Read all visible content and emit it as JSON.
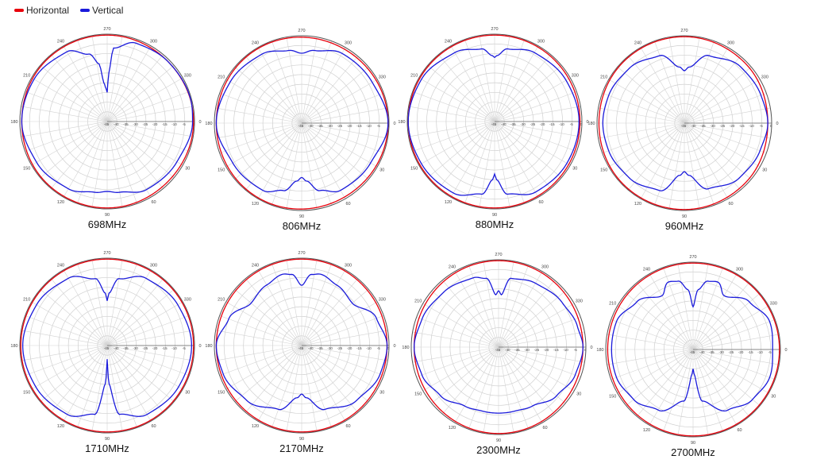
{
  "legend": {
    "horizontal_label": "Horizontal",
    "vertical_label": "Vertical",
    "horizontal_color": "#e8000b",
    "vertical_color": "#1a1adb"
  },
  "axis": {
    "angle_labels": [
      "0",
      "30",
      "60",
      "90",
      "120",
      "150",
      "180",
      "210",
      "240",
      "270",
      "300",
      "330"
    ],
    "radial_labels": [
      "-45",
      "-40",
      "-35",
      "-30",
      "-25",
      "-20",
      "-15",
      "-10",
      "-5",
      "0"
    ],
    "radial_range_db": [
      -45,
      0
    ],
    "angle_zero_direction": "east",
    "angle_direction": "clockwise",
    "grid": true
  },
  "chart_data": [
    {
      "type": "polar",
      "title": "698MHz",
      "series": [
        {
          "name": "Horizontal",
          "theta": [
            0,
            45,
            90,
            135,
            180,
            225,
            270,
            315
          ],
          "r": [
            -0.5,
            -1,
            -0.5,
            -0.5,
            -1,
            -0.5,
            -0.5,
            -1
          ]
        },
        {
          "name": "Vertical",
          "theta": [
            0,
            30,
            60,
            80,
            90,
            100,
            120,
            150,
            180,
            210,
            240,
            255,
            262,
            265,
            268,
            270,
            272,
            275,
            290,
            315,
            345
          ],
          "r": [
            -1,
            -3.5,
            -4.5,
            -8,
            -9,
            -8,
            -5,
            -3,
            -1,
            -1.5,
            -3.5,
            -9,
            -15,
            -25,
            -28,
            -30,
            -20,
            -7,
            -2,
            -1,
            -0.5
          ]
        }
      ]
    },
    {
      "type": "polar",
      "title": "806MHz",
      "series": [
        {
          "name": "Horizontal",
          "theta": [
            0,
            60,
            120,
            180,
            240,
            300
          ],
          "r": [
            -0.5,
            -1,
            -0.5,
            -1,
            -0.5,
            -1
          ]
        },
        {
          "name": "Vertical",
          "theta": [
            0,
            30,
            60,
            75,
            85,
            90,
            95,
            105,
            120,
            150,
            180,
            210,
            240,
            260,
            270,
            280,
            300,
            330
          ],
          "r": [
            -0.5,
            -4,
            -5,
            -9,
            -15,
            -17,
            -15,
            -9,
            -5,
            -4,
            -1,
            -2.5,
            -4,
            -7,
            -9,
            -7,
            -3.5,
            -3
          ]
        }
      ]
    },
    {
      "type": "polar",
      "title": "880MHz",
      "series": [
        {
          "name": "Horizontal",
          "theta": [
            0,
            90,
            180,
            270
          ],
          "r": [
            -1,
            -0.5,
            -0.5,
            -0.5
          ]
        },
        {
          "name": "Vertical",
          "theta": [
            0,
            30,
            60,
            80,
            88,
            90,
            92,
            100,
            120,
            150,
            180,
            210,
            240,
            260,
            268,
            270,
            272,
            280,
            300,
            330
          ],
          "r": [
            -1.5,
            -2,
            -3,
            -7,
            -15,
            -18,
            -15,
            -7,
            -2.5,
            -1.5,
            -0.5,
            -1.5,
            -4,
            -7,
            -11,
            -12,
            -11,
            -7,
            -4,
            -2.5
          ]
        }
      ]
    },
    {
      "type": "polar",
      "title": "960MHz",
      "series": [
        {
          "name": "Horizontal",
          "theta": [
            0,
            45,
            90,
            135,
            180,
            225,
            270,
            315
          ],
          "r": [
            -2,
            -1,
            -0.5,
            -0.5,
            -1,
            -0.5,
            -0.5,
            -1
          ]
        },
        {
          "name": "Vertical",
          "theta": [
            0,
            20,
            45,
            70,
            85,
            90,
            95,
            110,
            135,
            160,
            180,
            200,
            225,
            250,
            265,
            270,
            275,
            290,
            315,
            340
          ],
          "r": [
            -2,
            -3.5,
            -5,
            -9,
            -18,
            -20,
            -18,
            -8,
            -5,
            -3.5,
            -3,
            -3.5,
            -5,
            -8,
            -16,
            -18,
            -16,
            -8,
            -4,
            -3
          ]
        }
      ]
    },
    {
      "type": "polar",
      "title": "1710MHz",
      "series": [
        {
          "name": "Horizontal",
          "theta": [
            0,
            90,
            180,
            270
          ],
          "r": [
            -0.5,
            -0.5,
            -0.5,
            -0.5
          ]
        },
        {
          "name": "Vertical",
          "theta": [
            0,
            30,
            60,
            80,
            87,
            90,
            93,
            100,
            120,
            150,
            180,
            210,
            240,
            260,
            268,
            270,
            272,
            280,
            300,
            330
          ],
          "r": [
            -1.5,
            -2.5,
            -4,
            -9,
            -25,
            -38,
            -25,
            -9,
            -4,
            -2.5,
            -1.5,
            -3,
            -5,
            -10,
            -18,
            -22,
            -18,
            -10,
            -5,
            -3
          ]
        }
      ]
    },
    {
      "type": "polar",
      "title": "2170MHz",
      "series": [
        {
          "name": "Horizontal",
          "theta": [
            0,
            90,
            180,
            270
          ],
          "r": [
            -1,
            -0.5,
            -1,
            -0.5
          ]
        },
        {
          "name": "Vertical",
          "theta": [
            0,
            20,
            45,
            70,
            85,
            90,
            95,
            110,
            135,
            160,
            180,
            200,
            220,
            240,
            255,
            262,
            270,
            278,
            285,
            300,
            320,
            340
          ],
          "r": [
            -1,
            -2,
            -5,
            -10,
            -18,
            -20,
            -18,
            -10,
            -5,
            -2,
            -1,
            -5,
            -11,
            -9,
            -7,
            -8,
            -14,
            -8,
            -7,
            -9,
            -11,
            -4
          ]
        }
      ]
    },
    {
      "type": "polar",
      "title": "2300MHz",
      "series": [
        {
          "name": "Horizontal",
          "theta": [
            0,
            90,
            180,
            270
          ],
          "r": [
            -1.5,
            -0.5,
            -1.5,
            -0.5
          ]
        },
        {
          "name": "Vertical",
          "theta": [
            0,
            20,
            40,
            60,
            75,
            90,
            105,
            120,
            140,
            160,
            180,
            200,
            225,
            250,
            260,
            267,
            270,
            273,
            280,
            300,
            325,
            345
          ],
          "r": [
            -1.5,
            -3,
            -6,
            -10,
            -11,
            -11,
            -11,
            -10,
            -6,
            -3,
            -1.5,
            -3,
            -5,
            -7,
            -9,
            -18,
            -16,
            -18,
            -9,
            -7,
            -5,
            -3
          ]
        }
      ]
    },
    {
      "type": "polar",
      "title": "2700MHz",
      "series": [
        {
          "name": "Horizontal",
          "theta": [
            0,
            90,
            180,
            270
          ],
          "r": [
            -0.5,
            -0.5,
            -1,
            -0.5
          ]
        },
        {
          "name": "Vertical",
          "theta": [
            0,
            20,
            40,
            60,
            80,
            87,
            90,
            93,
            100,
            120,
            140,
            160,
            180,
            200,
            220,
            240,
            250,
            258,
            265,
            270,
            275,
            282,
            290,
            300,
            320,
            340
          ],
          "r": [
            -4,
            -3,
            -5,
            -9,
            -18,
            -32,
            -35,
            -32,
            -18,
            -9,
            -5,
            -3,
            -3,
            -3,
            -7,
            -13,
            -8,
            -9,
            -14,
            -23,
            -14,
            -9,
            -8,
            -13,
            -7,
            -3
          ]
        }
      ]
    }
  ]
}
